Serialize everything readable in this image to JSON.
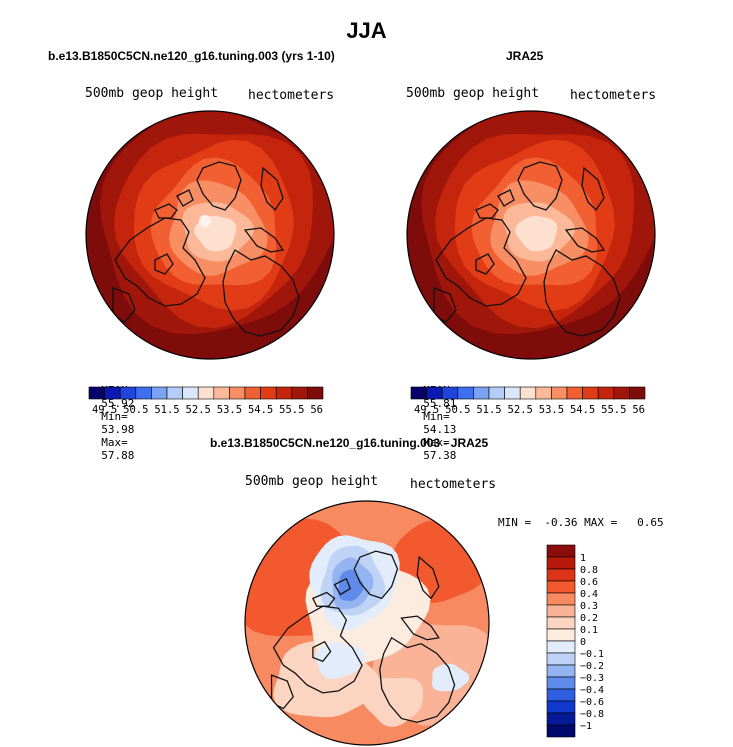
{
  "figure": {
    "title": "JJA"
  },
  "panels": [
    {
      "case_title": "b.e13.B1850C5CN.ne120_g16.tuning.003 (yrs 1-10)",
      "left_label": "500mb geop height",
      "right_label": "hectometers",
      "stats": {
        "mean_label": "MEAN=",
        "mean": "55.92",
        "min_label": "Min=",
        "min": "53.98",
        "max_label": "Max=",
        "max": "57.88"
      }
    },
    {
      "case_title": "JRA25",
      "left_label": "500mb geop height",
      "right_label": "hectometers",
      "stats": {
        "mean_label": "MEAN=",
        "mean": "55.81",
        "min_label": "Min=",
        "min": "54.13",
        "max_label": "Max=",
        "max": "57.38"
      }
    },
    {
      "case_title": "b.e13.B1850C5CN.ne120_g16.tuning.003 - JRA25",
      "left_label": "500mb geop height",
      "right_label": "hectometers",
      "stats_text": "MIN =  -0.36 MAX =   0.65"
    }
  ],
  "chart_data": [
    {
      "type": "heatmap",
      "projection": "north polar stereographic",
      "title": "b.e13.B1850C5CN.ne120_g16.tuning.003 (yrs 1-10)",
      "variable": "500mb geop height",
      "units": "hectometers",
      "mean": 55.92,
      "min": 53.98,
      "max": 57.88,
      "colorbar_levels": [
        49.5,
        50,
        50.5,
        51,
        51.5,
        52,
        52.5,
        53,
        53.5,
        54,
        54.5,
        55,
        55.5,
        56,
        56.5
      ],
      "colorbar_labels": [
        "49.5",
        "50.5",
        "51.5",
        "52.5",
        "53.5",
        "54.5",
        "55.5",
        "56.5"
      ]
    },
    {
      "type": "heatmap",
      "projection": "north polar stereographic",
      "title": "JRA25",
      "variable": "500mb geop height",
      "units": "hectometers",
      "mean": 55.81,
      "min": 54.13,
      "max": 57.38,
      "colorbar_levels": [
        49.5,
        50,
        50.5,
        51,
        51.5,
        52,
        52.5,
        53,
        53.5,
        54,
        54.5,
        55,
        55.5,
        56,
        56.5
      ],
      "colorbar_labels": [
        "49.5",
        "50.5",
        "51.5",
        "52.5",
        "53.5",
        "54.5",
        "55.5",
        "56.5"
      ]
    },
    {
      "type": "heatmap",
      "projection": "north polar stereographic",
      "title": "b.e13.B1850C5CN.ne120_g16.tuning.003 - JRA25",
      "variable": "500mb geop height",
      "units": "hectometers",
      "min": -0.36,
      "max": 0.65,
      "colorbar_levels": [
        1,
        0.8,
        0.6,
        0.4,
        0.3,
        0.2,
        0.1,
        0,
        -0.1,
        -0.2,
        -0.3,
        -0.4,
        -0.6,
        -0.8,
        -1
      ],
      "colorbar_labels": [
        "1",
        "0.8",
        "0.6",
        "0.4",
        "0.3",
        "0.2",
        "0.1",
        "0",
        "−0.1",
        "−0.2",
        "−0.3",
        "−0.4",
        "−0.6",
        "−0.8",
        "−1"
      ]
    }
  ],
  "colors": {
    "abs_scale": [
      "#08006b",
      "#0a18b4",
      "#1f45dd",
      "#3d6fee",
      "#7aa3f4",
      "#b3cdf8",
      "#dae6fb",
      "#fde0d0",
      "#fbb99a",
      "#f88e63",
      "#f25f33",
      "#e23c17",
      "#c4250c",
      "#a0160a",
      "#7e0c0a"
    ],
    "diff_scale": [
      "#8a0c0b",
      "#b8190b",
      "#dc3416",
      "#f2592e",
      "#f78a60",
      "#fab396",
      "#fcd4c2",
      "#fcebdf",
      "#e3ecfa",
      "#bed3f6",
      "#93b3f1",
      "#5f8cea",
      "#2f5fdf",
      "#1238cb",
      "#061a97",
      "#000a6a"
    ],
    "coast": "#111111"
  }
}
